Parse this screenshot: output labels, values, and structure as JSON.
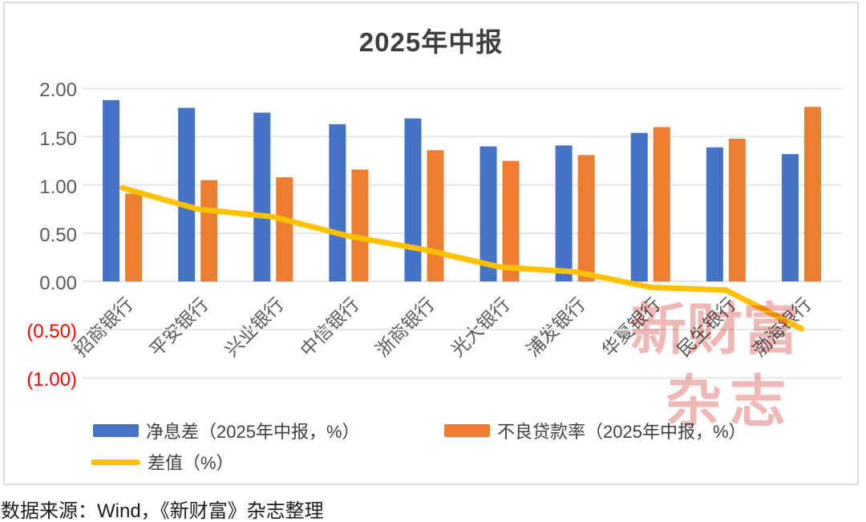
{
  "title": "2025年中报",
  "source_note": "数据来源：Wind，《新财富》杂志整理",
  "watermark": {
    "line1": "新财富",
    "line2": "杂志"
  },
  "colors": {
    "net_interest_margin_bar": "#4472C4",
    "npl_ratio_bar": "#ED7D31",
    "difference_line": "#FFC000",
    "gridline": "#E6E6E6",
    "axis_label": "#595959",
    "negative_axis_label": "#FF0000",
    "title_text": "#3F3F3F",
    "watermark_red": "#D9534F"
  },
  "legend": {
    "items": [
      {
        "label": "净息差（2025年中报，%）",
        "type": "bar",
        "color": "#4472C4"
      },
      {
        "label": "不良贷款率（2025年中报，%）",
        "type": "bar",
        "color": "#ED7D31"
      },
      {
        "label": "差值（%）",
        "type": "line",
        "color": "#FFC000"
      }
    ]
  },
  "chart_data": {
    "type": "bar",
    "subtype": "grouped-bars-with-line-overlay",
    "title": "2025年中报",
    "categories": [
      "招商银行",
      "平安银行",
      "兴业银行",
      "中信银行",
      "浙商银行",
      "光大银行",
      "浦发银行",
      "华夏银行",
      "民生银行",
      "渤海银行"
    ],
    "series": [
      {
        "name": "净息差（2025年中报，%）",
        "type": "bar",
        "color": "#4472C4",
        "values": [
          1.88,
          1.8,
          1.75,
          1.63,
          1.69,
          1.4,
          1.41,
          1.54,
          1.39,
          1.32
        ]
      },
      {
        "name": "不良贷款率（2025年中报，%）",
        "type": "bar",
        "color": "#ED7D31",
        "values": [
          0.91,
          1.05,
          1.08,
          1.16,
          1.36,
          1.25,
          1.31,
          1.6,
          1.48,
          1.81
        ]
      },
      {
        "name": "差值（%）",
        "type": "line",
        "color": "#FFC000",
        "values": [
          0.97,
          0.75,
          0.67,
          0.47,
          0.33,
          0.15,
          0.1,
          -0.06,
          -0.09,
          -0.49
        ]
      }
    ],
    "xlabel": "",
    "ylabel": "",
    "y_axis": {
      "min": -1.0,
      "max": 2.0,
      "step": 0.5,
      "tick_labels": [
        "2.00",
        "1.50",
        "1.00",
        "0.50",
        "0.00",
        "(0.50)",
        "(1.00)"
      ],
      "negative_labels_in_parentheses": true,
      "negative_label_color": "#FF0000"
    },
    "grid": true,
    "legend_position": "bottom-left"
  }
}
